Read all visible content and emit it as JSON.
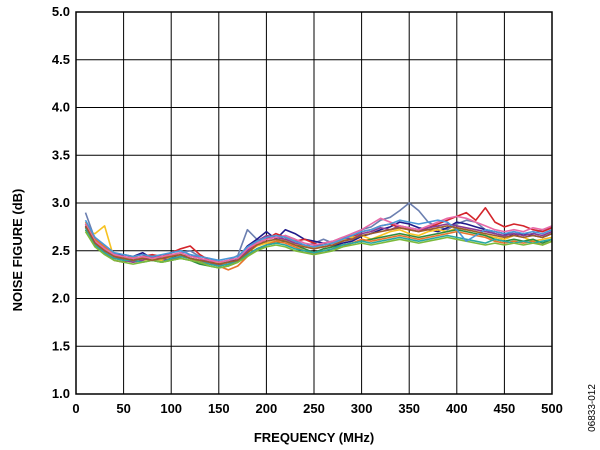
{
  "chart_data": {
    "type": "line",
    "xlabel": "FREQUENCY (MHz)",
    "ylabel": "NOISE FIGURE (dB)",
    "xlim": [
      0,
      500
    ],
    "ylim": [
      1.0,
      5.0
    ],
    "x_ticks": [
      0,
      50,
      100,
      150,
      200,
      250,
      300,
      350,
      400,
      450,
      500
    ],
    "y_ticks": [
      1.0,
      1.5,
      2.0,
      2.5,
      3.0,
      3.5,
      4.0,
      4.5,
      5.0
    ],
    "x_tick_labels": [
      "0",
      "50",
      "100",
      "150",
      "200",
      "250",
      "300",
      "350",
      "400",
      "450",
      "500"
    ],
    "y_tick_labels": [
      "1.0",
      "1.5",
      "2.0",
      "2.5",
      "3.0",
      "3.5",
      "4.0",
      "4.5",
      "5.0"
    ],
    "grid": true,
    "figure_code": "06833-012",
    "x": [
      10,
      20,
      30,
      40,
      50,
      60,
      70,
      80,
      90,
      100,
      110,
      120,
      130,
      140,
      150,
      160,
      170,
      180,
      190,
      200,
      210,
      220,
      230,
      240,
      250,
      260,
      270,
      280,
      290,
      300,
      310,
      320,
      330,
      340,
      350,
      360,
      370,
      380,
      390,
      400,
      410,
      420,
      430,
      440,
      450,
      460,
      470,
      480,
      490,
      500
    ],
    "series": [
      {
        "color": "#6b7fb0",
        "values": [
          2.9,
          2.62,
          2.55,
          2.47,
          2.44,
          2.42,
          2.4,
          2.43,
          2.41,
          2.45,
          2.48,
          2.5,
          2.44,
          2.42,
          2.38,
          2.4,
          2.45,
          2.72,
          2.62,
          2.58,
          2.6,
          2.66,
          2.62,
          2.55,
          2.58,
          2.62,
          2.58,
          2.62,
          2.68,
          2.72,
          2.75,
          2.82,
          2.85,
          2.92,
          3.0,
          2.92,
          2.8,
          2.75,
          2.72,
          2.78,
          2.82,
          2.8,
          2.72,
          2.68,
          2.65,
          2.7,
          2.66,
          2.68,
          2.72,
          2.75
        ]
      },
      {
        "color": "#1f1a8a",
        "values": [
          2.78,
          2.58,
          2.5,
          2.45,
          2.46,
          2.44,
          2.48,
          2.42,
          2.4,
          2.42,
          2.46,
          2.42,
          2.4,
          2.38,
          2.36,
          2.38,
          2.42,
          2.55,
          2.62,
          2.7,
          2.62,
          2.72,
          2.68,
          2.62,
          2.6,
          2.58,
          2.55,
          2.58,
          2.6,
          2.65,
          2.68,
          2.72,
          2.75,
          2.8,
          2.78,
          2.74,
          2.72,
          2.7,
          2.74,
          2.8,
          2.78,
          2.75,
          2.72,
          2.7,
          2.68,
          2.66,
          2.68,
          2.66,
          2.64,
          2.68
        ]
      },
      {
        "color": "#d4252b",
        "values": [
          2.75,
          2.55,
          2.48,
          2.4,
          2.38,
          2.42,
          2.44,
          2.46,
          2.44,
          2.48,
          2.52,
          2.55,
          2.46,
          2.4,
          2.36,
          2.35,
          2.4,
          2.5,
          2.58,
          2.62,
          2.68,
          2.64,
          2.6,
          2.62,
          2.58,
          2.54,
          2.56,
          2.6,
          2.64,
          2.7,
          2.72,
          2.76,
          2.78,
          2.74,
          2.72,
          2.7,
          2.74,
          2.78,
          2.82,
          2.86,
          2.9,
          2.82,
          2.95,
          2.8,
          2.75,
          2.78,
          2.76,
          2.72,
          2.7,
          2.74
        ]
      },
      {
        "color": "#f7c221",
        "values": [
          2.7,
          2.68,
          2.76,
          2.42,
          2.4,
          2.38,
          2.4,
          2.42,
          2.4,
          2.44,
          2.46,
          2.42,
          2.4,
          2.36,
          2.38,
          2.35,
          2.38,
          2.48,
          2.55,
          2.58,
          2.6,
          2.62,
          2.58,
          2.55,
          2.52,
          2.56,
          2.58,
          2.62,
          2.64,
          2.66,
          2.62,
          2.66,
          2.7,
          2.72,
          2.68,
          2.66,
          2.7,
          2.72,
          2.7,
          2.74,
          2.72,
          2.7,
          2.66,
          2.64,
          2.62,
          2.66,
          2.64,
          2.6,
          2.62,
          2.64
        ]
      },
      {
        "color": "#2e8b3e",
        "values": [
          2.72,
          2.6,
          2.52,
          2.44,
          2.42,
          2.4,
          2.42,
          2.4,
          2.38,
          2.4,
          2.42,
          2.4,
          2.36,
          2.34,
          2.32,
          2.34,
          2.38,
          2.46,
          2.5,
          2.56,
          2.58,
          2.6,
          2.56,
          2.52,
          2.48,
          2.52,
          2.54,
          2.56,
          2.58,
          2.6,
          2.62,
          2.64,
          2.66,
          2.68,
          2.66,
          2.64,
          2.66,
          2.68,
          2.7,
          2.72,
          2.7,
          2.68,
          2.66,
          2.62,
          2.6,
          2.62,
          2.6,
          2.62,
          2.58,
          2.62
        ]
      },
      {
        "color": "#e8742a",
        "values": [
          2.8,
          2.62,
          2.54,
          2.46,
          2.42,
          2.44,
          2.42,
          2.44,
          2.42,
          2.46,
          2.44,
          2.42,
          2.38,
          2.36,
          2.34,
          2.3,
          2.34,
          2.44,
          2.52,
          2.56,
          2.6,
          2.58,
          2.54,
          2.5,
          2.46,
          2.5,
          2.52,
          2.54,
          2.58,
          2.62,
          2.6,
          2.62,
          2.64,
          2.66,
          2.64,
          2.62,
          2.64,
          2.66,
          2.68,
          2.7,
          2.68,
          2.66,
          2.64,
          2.6,
          2.58,
          2.6,
          2.58,
          2.6,
          2.56,
          2.6
        ]
      },
      {
        "color": "#8a3a94",
        "values": [
          2.76,
          2.58,
          2.5,
          2.44,
          2.4,
          2.38,
          2.4,
          2.44,
          2.42,
          2.4,
          2.44,
          2.46,
          2.42,
          2.38,
          2.34,
          2.36,
          2.4,
          2.5,
          2.6,
          2.66,
          2.64,
          2.62,
          2.58,
          2.56,
          2.54,
          2.58,
          2.6,
          2.64,
          2.62,
          2.68,
          2.7,
          2.74,
          2.72,
          2.76,
          2.74,
          2.72,
          2.74,
          2.76,
          2.78,
          2.76,
          2.74,
          2.72,
          2.7,
          2.68,
          2.66,
          2.68,
          2.66,
          2.68,
          2.66,
          2.7
        ]
      },
      {
        "color": "#28a8a0",
        "values": [
          2.74,
          2.56,
          2.48,
          2.42,
          2.4,
          2.4,
          2.38,
          2.4,
          2.38,
          2.42,
          2.44,
          2.42,
          2.4,
          2.36,
          2.34,
          2.36,
          2.4,
          2.46,
          2.52,
          2.56,
          2.58,
          2.56,
          2.52,
          2.5,
          2.48,
          2.5,
          2.52,
          2.56,
          2.58,
          2.6,
          2.58,
          2.6,
          2.62,
          2.64,
          2.62,
          2.6,
          2.62,
          2.64,
          2.66,
          2.64,
          2.62,
          2.6,
          2.58,
          2.62,
          2.6,
          2.58,
          2.6,
          2.58,
          2.6,
          2.62
        ]
      },
      {
        "color": "#e86aa8",
        "values": [
          2.78,
          2.6,
          2.52,
          2.46,
          2.44,
          2.42,
          2.44,
          2.42,
          2.44,
          2.46,
          2.48,
          2.44,
          2.42,
          2.4,
          2.38,
          2.4,
          2.42,
          2.52,
          2.58,
          2.62,
          2.64,
          2.66,
          2.62,
          2.58,
          2.56,
          2.58,
          2.6,
          2.64,
          2.68,
          2.72,
          2.78,
          2.84,
          2.8,
          2.76,
          2.74,
          2.72,
          2.76,
          2.8,
          2.84,
          2.86,
          2.84,
          2.8,
          2.76,
          2.72,
          2.7,
          2.72,
          2.7,
          2.74,
          2.72,
          2.76
        ]
      },
      {
        "color": "#7cba3c",
        "values": [
          2.7,
          2.54,
          2.46,
          2.4,
          2.38,
          2.36,
          2.38,
          2.4,
          2.38,
          2.4,
          2.42,
          2.4,
          2.38,
          2.34,
          2.32,
          2.34,
          2.38,
          2.44,
          2.5,
          2.54,
          2.56,
          2.54,
          2.5,
          2.48,
          2.46,
          2.48,
          2.5,
          2.54,
          2.56,
          2.58,
          2.56,
          2.58,
          2.6,
          2.62,
          2.6,
          2.58,
          2.6,
          2.62,
          2.64,
          2.62,
          2.6,
          2.58,
          2.56,
          2.58,
          2.56,
          2.58,
          2.56,
          2.58,
          2.56,
          2.6
        ]
      },
      {
        "color": "#4a97d8",
        "values": [
          2.82,
          2.64,
          2.56,
          2.48,
          2.46,
          2.44,
          2.46,
          2.44,
          2.46,
          2.48,
          2.5,
          2.46,
          2.44,
          2.42,
          2.4,
          2.42,
          2.44,
          2.54,
          2.6,
          2.64,
          2.66,
          2.64,
          2.6,
          2.56,
          2.54,
          2.56,
          2.58,
          2.62,
          2.66,
          2.7,
          2.72,
          2.76,
          2.78,
          2.82,
          2.8,
          2.78,
          2.8,
          2.82,
          2.8,
          2.72,
          2.6,
          2.66,
          2.72,
          2.7,
          2.68,
          2.7,
          2.68,
          2.7,
          2.68,
          2.72
        ]
      },
      {
        "color": "#9b5a2e",
        "values": [
          2.76,
          2.58,
          2.5,
          2.44,
          2.42,
          2.4,
          2.42,
          2.4,
          2.42,
          2.44,
          2.46,
          2.42,
          2.4,
          2.38,
          2.36,
          2.38,
          2.4,
          2.48,
          2.56,
          2.6,
          2.62,
          2.6,
          2.56,
          2.54,
          2.52,
          2.54,
          2.56,
          2.6,
          2.62,
          2.66,
          2.68,
          2.7,
          2.72,
          2.74,
          2.72,
          2.7,
          2.72,
          2.74,
          2.76,
          2.74,
          2.72,
          2.7,
          2.68,
          2.66,
          2.64,
          2.66,
          2.64,
          2.66,
          2.64,
          2.68
        ]
      }
    ]
  }
}
